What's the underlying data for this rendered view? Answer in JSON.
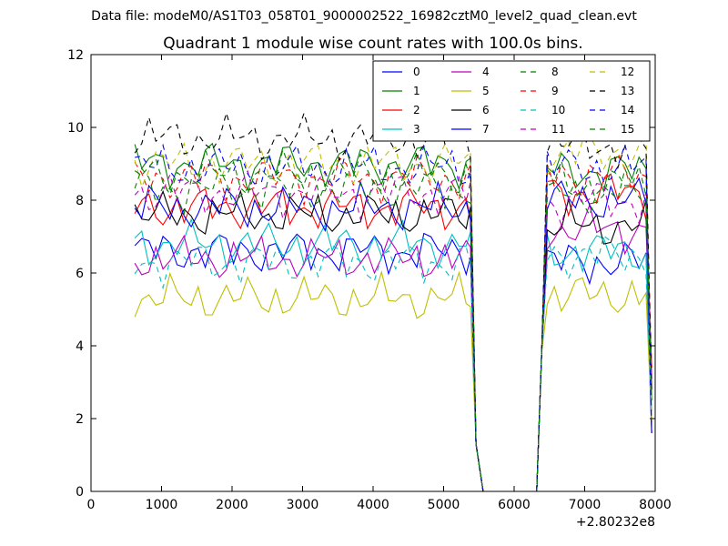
{
  "figure": {
    "suptitle": "Data file: modeM0/AS1T03_058T01_9000002522_16982cztM0_level2_quad_clean.evt"
  },
  "chart_data": {
    "type": "line",
    "title": "Quadrant 1 module wise count rates with 100.0s bins.",
    "xlabel": "",
    "ylabel": "",
    "x_offset_label": "+2.80232e8",
    "xlim": [
      0,
      8000
    ],
    "ylim": [
      0,
      12
    ],
    "xticks": [
      "0",
      "1000",
      "2000",
      "3000",
      "4000",
      "5000",
      "6000",
      "7000",
      "8000"
    ],
    "yticks": [
      "0",
      "2",
      "4",
      "6",
      "8",
      "10",
      "12"
    ],
    "legend_position": "top-right",
    "x": [
      620,
      720,
      820,
      920,
      1020,
      1120,
      1220,
      1320,
      1420,
      1520,
      1620,
      1720,
      1820,
      1920,
      2020,
      2120,
      2220,
      2320,
      2420,
      2520,
      2620,
      2720,
      2820,
      2920,
      3020,
      3120,
      3220,
      3320,
      3420,
      3520,
      3620,
      3720,
      3820,
      3920,
      4020,
      4120,
      4220,
      4320,
      4420,
      4520,
      4620,
      4720,
      4820,
      4920,
      5020,
      5120,
      5220,
      5320,
      5380,
      5460,
      5560,
      5660,
      5760,
      5860,
      5960,
      6060,
      6160,
      6260,
      6320,
      6390,
      6470,
      6570,
      6670,
      6770,
      6870,
      6970,
      7070,
      7170,
      7270,
      7370,
      7470,
      7570,
      7670,
      7770,
      7870,
      7950
    ],
    "series": [
      {
        "name": "0",
        "color": "#0000ff",
        "dash": false,
        "mean_a": 6.6,
        "mean_b": 6.3
      },
      {
        "name": "1",
        "color": "#008000",
        "dash": false,
        "mean_a": 9.0,
        "mean_b": 8.8
      },
      {
        "name": "2",
        "color": "#ff0000",
        "dash": false,
        "mean_a": 7.8,
        "mean_b": 8.2
      },
      {
        "name": "3",
        "color": "#00bfbf",
        "dash": false,
        "mean_a": 6.8,
        "mean_b": 6.6
      },
      {
        "name": "4",
        "color": "#bf00bf",
        "dash": false,
        "mean_a": 6.4,
        "mean_b": 7.2
      },
      {
        "name": "5",
        "color": "#bfbf00",
        "dash": false,
        "mean_a": 5.3,
        "mean_b": 5.4
      },
      {
        "name": "6",
        "color": "#000000",
        "dash": false,
        "mean_a": 7.6,
        "mean_b": 7.3
      },
      {
        "name": "7",
        "color": "#0000ff",
        "dash": false,
        "mean_a": 7.8,
        "mean_b": 8.0
      },
      {
        "name": "8",
        "color": "#008000",
        "dash": true,
        "mean_a": 8.3,
        "mean_b": 8.2
      },
      {
        "name": "9",
        "color": "#ff0000",
        "dash": true,
        "mean_a": 8.6,
        "mean_b": 8.7
      },
      {
        "name": "10",
        "color": "#00bfbf",
        "dash": true,
        "mean_a": 6.3,
        "mean_b": 6.5
      },
      {
        "name": "11",
        "color": "#bf00bf",
        "dash": true,
        "mean_a": 8.2,
        "mean_b": 8.0
      },
      {
        "name": "12",
        "color": "#bfbf00",
        "dash": true,
        "mean_a": 9.0,
        "mean_b": 9.3
      },
      {
        "name": "13",
        "color": "#000000",
        "dash": true,
        "mean_a": 9.7,
        "mean_b": 9.5
      },
      {
        "name": "14",
        "color": "#0000ff",
        "dash": true,
        "mean_a": 8.9,
        "mean_b": 8.9
      },
      {
        "name": "15",
        "color": "#008000",
        "dash": true,
        "mean_a": 8.7,
        "mean_b": 8.4
      }
    ]
  }
}
